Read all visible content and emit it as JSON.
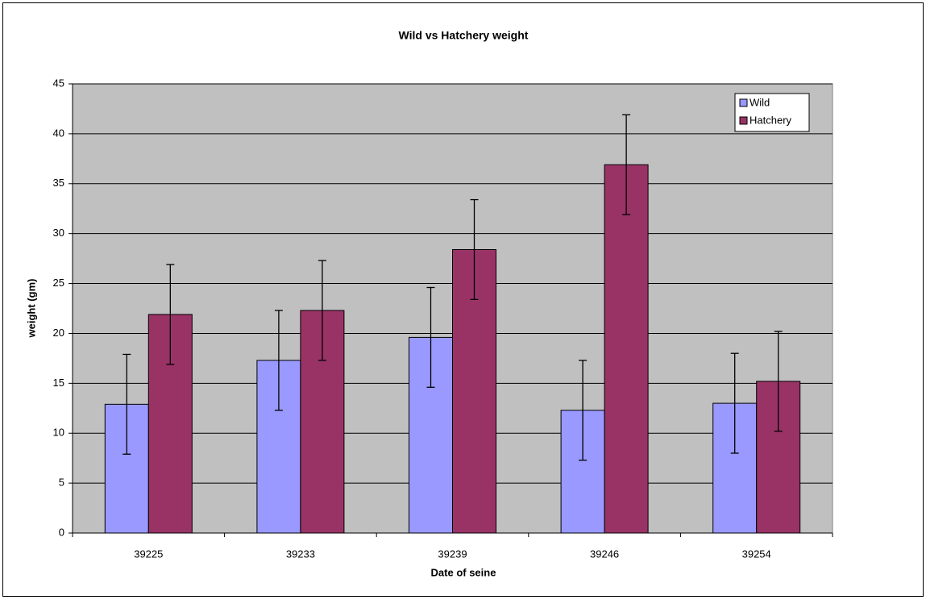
{
  "chart_data": {
    "type": "bar",
    "title": "Wild vs Hatchery weight",
    "x_label": "Date of seine",
    "y_label": "weight (gm)",
    "categories": [
      "39225",
      "39233",
      "39239",
      "39246",
      "39254"
    ],
    "series": [
      {
        "name": "Wild",
        "color": "#9999ff",
        "values": [
          12.9,
          17.3,
          19.6,
          12.3,
          13.0
        ],
        "errors": [
          5,
          5,
          5,
          5,
          5
        ]
      },
      {
        "name": "Hatchery",
        "color": "#993366",
        "values": [
          21.9,
          22.3,
          28.4,
          36.9,
          15.2
        ],
        "errors": [
          5,
          5,
          5,
          5,
          5
        ]
      }
    ],
    "ylim": [
      0,
      45
    ],
    "yticks": [
      0,
      5,
      10,
      15,
      20,
      25,
      30,
      35,
      40,
      45
    ],
    "grid": true,
    "legend": "top-right",
    "plot_background": "#c0c0c0"
  }
}
